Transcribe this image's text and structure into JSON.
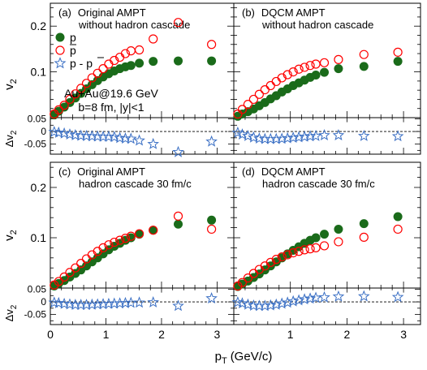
{
  "figure": {
    "xlabel_main": "p",
    "xlabel_sub": "T",
    "xlabel_unit": "(GeV/c)",
    "ylabel_main": "v",
    "ylabel_sub": "2",
    "dylabel_main": "Δv",
    "dylabel_sub": "2",
    "legend": {
      "p": "p",
      "pbar": "p",
      "diff": "p - p"
    },
    "system_label": "Au+Au@19.6 GeV",
    "cuts_label": "b=8 fm, |y|<1",
    "colors": {
      "proton": "#1a6b1a",
      "antiproton": "#ff0000",
      "difference": "#3a6fc4"
    }
  },
  "chart_data": [
    {
      "type": "scatter",
      "panel": "(a)",
      "title_line1": "Original AMPT",
      "title_line2": "without hadron cascade",
      "xlim": [
        0,
        3.3
      ],
      "ylim": [
        0,
        0.25
      ],
      "dylim": [
        -0.09,
        0.055
      ],
      "x_ticks": [
        "0",
        "1",
        "2",
        "3"
      ],
      "y_ticks": [
        "0.1",
        "0.2"
      ],
      "dy_ticks": [
        "-0.05",
        "0",
        "0.05"
      ],
      "series": [
        {
          "name": "p",
          "marker": "filled-circle",
          "x": [
            0.07,
            0.15,
            0.25,
            0.35,
            0.45,
            0.55,
            0.65,
            0.75,
            0.85,
            0.95,
            1.05,
            1.15,
            1.25,
            1.35,
            1.45,
            1.6,
            1.85,
            2.3,
            2.9
          ],
          "y": [
            0.006,
            0.014,
            0.023,
            0.033,
            0.043,
            0.053,
            0.063,
            0.072,
            0.081,
            0.089,
            0.096,
            0.102,
            0.107,
            0.111,
            0.114,
            0.119,
            0.123,
            0.124,
            0.124
          ]
        },
        {
          "name": "p̄",
          "marker": "open-circle",
          "x": [
            0.07,
            0.15,
            0.25,
            0.35,
            0.45,
            0.55,
            0.65,
            0.75,
            0.85,
            0.95,
            1.05,
            1.15,
            1.25,
            1.35,
            1.45,
            1.6,
            1.85,
            2.3,
            2.9
          ],
          "y": [
            0.008,
            0.017,
            0.027,
            0.04,
            0.052,
            0.064,
            0.075,
            0.087,
            0.097,
            0.107,
            0.117,
            0.125,
            0.132,
            0.14,
            0.146,
            0.148,
            0.172,
            0.208,
            0.16
          ]
        },
        {
          "name": "p - p̄",
          "marker": "open-star",
          "axis": "dv2",
          "x": [
            0.07,
            0.15,
            0.25,
            0.35,
            0.45,
            0.55,
            0.65,
            0.75,
            0.85,
            0.95,
            1.05,
            1.15,
            1.25,
            1.35,
            1.45,
            1.6,
            1.85,
            2.3,
            2.9
          ],
          "y": [
            -0.002,
            -0.005,
            -0.008,
            -0.012,
            -0.015,
            -0.017,
            -0.018,
            -0.019,
            -0.02,
            -0.021,
            -0.021,
            -0.022,
            -0.026,
            -0.028,
            -0.029,
            -0.036,
            -0.05,
            -0.082,
            -0.04
          ]
        }
      ]
    },
    {
      "type": "scatter",
      "panel": "(b)",
      "title_line1": "DQCM AMPT",
      "title_line2": "without hadron cascade",
      "xlim": [
        0,
        3.3
      ],
      "ylim": [
        0,
        0.25
      ],
      "dylim": [
        -0.09,
        0.055
      ],
      "x_ticks": [
        "1",
        "2",
        "3"
      ],
      "series": [
        {
          "name": "p",
          "marker": "filled-circle",
          "x": [
            0.07,
            0.15,
            0.25,
            0.35,
            0.45,
            0.55,
            0.65,
            0.75,
            0.85,
            0.95,
            1.05,
            1.15,
            1.25,
            1.35,
            1.45,
            1.6,
            1.85,
            2.3,
            2.9
          ],
          "y": [
            0.003,
            0.008,
            0.013,
            0.019,
            0.026,
            0.033,
            0.041,
            0.048,
            0.056,
            0.063,
            0.07,
            0.076,
            0.082,
            0.088,
            0.093,
            0.099,
            0.107,
            0.112,
            0.123
          ]
        },
        {
          "name": "p̄",
          "marker": "open-circle",
          "x": [
            0.07,
            0.15,
            0.25,
            0.35,
            0.45,
            0.55,
            0.65,
            0.75,
            0.85,
            0.95,
            1.05,
            1.15,
            1.25,
            1.35,
            1.45,
            1.6,
            1.85,
            2.3,
            2.9
          ],
          "y": [
            0.008,
            0.018,
            0.029,
            0.04,
            0.051,
            0.061,
            0.07,
            0.079,
            0.087,
            0.094,
            0.1,
            0.106,
            0.11,
            0.114,
            0.117,
            0.12,
            0.127,
            0.138,
            0.143
          ]
        },
        {
          "name": "p - p̄",
          "marker": "open-star",
          "axis": "dv2",
          "x": [
            0.07,
            0.15,
            0.25,
            0.35,
            0.45,
            0.55,
            0.65,
            0.75,
            0.85,
            0.95,
            1.05,
            1.15,
            1.25,
            1.35,
            1.45,
            1.6,
            1.85,
            2.3,
            2.9
          ],
          "y": [
            -0.005,
            -0.012,
            -0.018,
            -0.024,
            -0.028,
            -0.03,
            -0.03,
            -0.03,
            -0.029,
            -0.027,
            -0.025,
            -0.023,
            -0.021,
            -0.019,
            -0.018,
            -0.015,
            -0.015,
            -0.018,
            -0.019
          ]
        }
      ]
    },
    {
      "type": "scatter",
      "panel": "(c)",
      "title_line1": "Original AMPT",
      "title_line2": "hadron cascade 30 fm/c",
      "xlim": [
        0,
        3.3
      ],
      "ylim": [
        0,
        0.25
      ],
      "dylim": [
        -0.09,
        0.055
      ],
      "x_ticks": [
        "0",
        "1",
        "2",
        "3"
      ],
      "y_ticks": [
        "0.1",
        "0.2"
      ],
      "dy_ticks": [
        "-0.05",
        "0",
        "0.05"
      ],
      "series": [
        {
          "name": "p",
          "marker": "filled-circle",
          "x": [
            0.07,
            0.15,
            0.25,
            0.35,
            0.45,
            0.55,
            0.65,
            0.75,
            0.85,
            0.95,
            1.05,
            1.15,
            1.25,
            1.35,
            1.45,
            1.6,
            1.85,
            2.3,
            2.9
          ],
          "y": [
            0.004,
            0.009,
            0.015,
            0.022,
            0.029,
            0.036,
            0.044,
            0.052,
            0.06,
            0.068,
            0.076,
            0.083,
            0.089,
            0.095,
            0.1,
            0.107,
            0.115,
            0.127,
            0.135
          ]
        },
        {
          "name": "p̄",
          "marker": "open-circle",
          "x": [
            0.07,
            0.15,
            0.25,
            0.35,
            0.45,
            0.55,
            0.65,
            0.75,
            0.85,
            0.95,
            1.05,
            1.15,
            1.25,
            1.35,
            1.45,
            1.6,
            1.85,
            2.3,
            2.9
          ],
          "y": [
            0.006,
            0.013,
            0.022,
            0.031,
            0.04,
            0.049,
            0.058,
            0.066,
            0.073,
            0.08,
            0.086,
            0.091,
            0.095,
            0.099,
            0.103,
            0.108,
            0.115,
            0.143,
            0.117
          ]
        },
        {
          "name": "p - p̄",
          "marker": "open-star",
          "axis": "dv2",
          "x": [
            0.07,
            0.15,
            0.25,
            0.35,
            0.45,
            0.55,
            0.65,
            0.75,
            0.85,
            0.95,
            1.05,
            1.15,
            1.25,
            1.35,
            1.45,
            1.6,
            1.85,
            2.3,
            2.9
          ],
          "y": [
            -0.003,
            -0.005,
            -0.008,
            -0.01,
            -0.012,
            -0.012,
            -0.012,
            -0.011,
            -0.01,
            -0.009,
            -0.008,
            -0.007,
            -0.006,
            -0.005,
            -0.004,
            -0.003,
            -0.002,
            -0.016,
            0.014
          ]
        }
      ]
    },
    {
      "type": "scatter",
      "panel": "(d)",
      "title_line1": "DQCM AMPT",
      "title_line2": "hadron cascade 30 fm/c",
      "xlim": [
        0,
        3.3
      ],
      "ylim": [
        0,
        0.25
      ],
      "dylim": [
        -0.09,
        0.055
      ],
      "x_ticks": [
        "1",
        "2",
        "3"
      ],
      "series": [
        {
          "name": "p",
          "marker": "filled-circle",
          "x": [
            0.07,
            0.15,
            0.25,
            0.35,
            0.45,
            0.55,
            0.65,
            0.75,
            0.85,
            0.95,
            1.05,
            1.15,
            1.25,
            1.35,
            1.45,
            1.6,
            1.85,
            2.3,
            2.9
          ],
          "y": [
            0.003,
            0.008,
            0.014,
            0.021,
            0.028,
            0.036,
            0.044,
            0.052,
            0.06,
            0.068,
            0.075,
            0.082,
            0.089,
            0.095,
            0.1,
            0.107,
            0.117,
            0.128,
            0.142
          ]
        },
        {
          "name": "p̄",
          "marker": "open-circle",
          "x": [
            0.07,
            0.15,
            0.25,
            0.35,
            0.45,
            0.55,
            0.65,
            0.75,
            0.85,
            0.95,
            1.05,
            1.15,
            1.25,
            1.35,
            1.45,
            1.6,
            1.85,
            2.3,
            2.9
          ],
          "y": [
            0.004,
            0.011,
            0.02,
            0.029,
            0.037,
            0.044,
            0.051,
            0.057,
            0.062,
            0.066,
            0.07,
            0.073,
            0.076,
            0.078,
            0.08,
            0.084,
            0.092,
            0.101,
            0.117
          ]
        },
        {
          "name": "p - p̄",
          "marker": "open-star",
          "axis": "dv2",
          "x": [
            0.07,
            0.15,
            0.25,
            0.35,
            0.45,
            0.55,
            0.65,
            0.75,
            0.85,
            0.95,
            1.05,
            1.15,
            1.25,
            1.35,
            1.45,
            1.6,
            1.85,
            2.3,
            2.9
          ],
          "y": [
            -0.002,
            -0.006,
            -0.011,
            -0.015,
            -0.016,
            -0.016,
            -0.014,
            -0.011,
            -0.007,
            -0.003,
            0.002,
            0.006,
            0.01,
            0.013,
            0.016,
            0.018,
            0.021,
            0.022,
            0.019
          ]
        }
      ]
    }
  ]
}
